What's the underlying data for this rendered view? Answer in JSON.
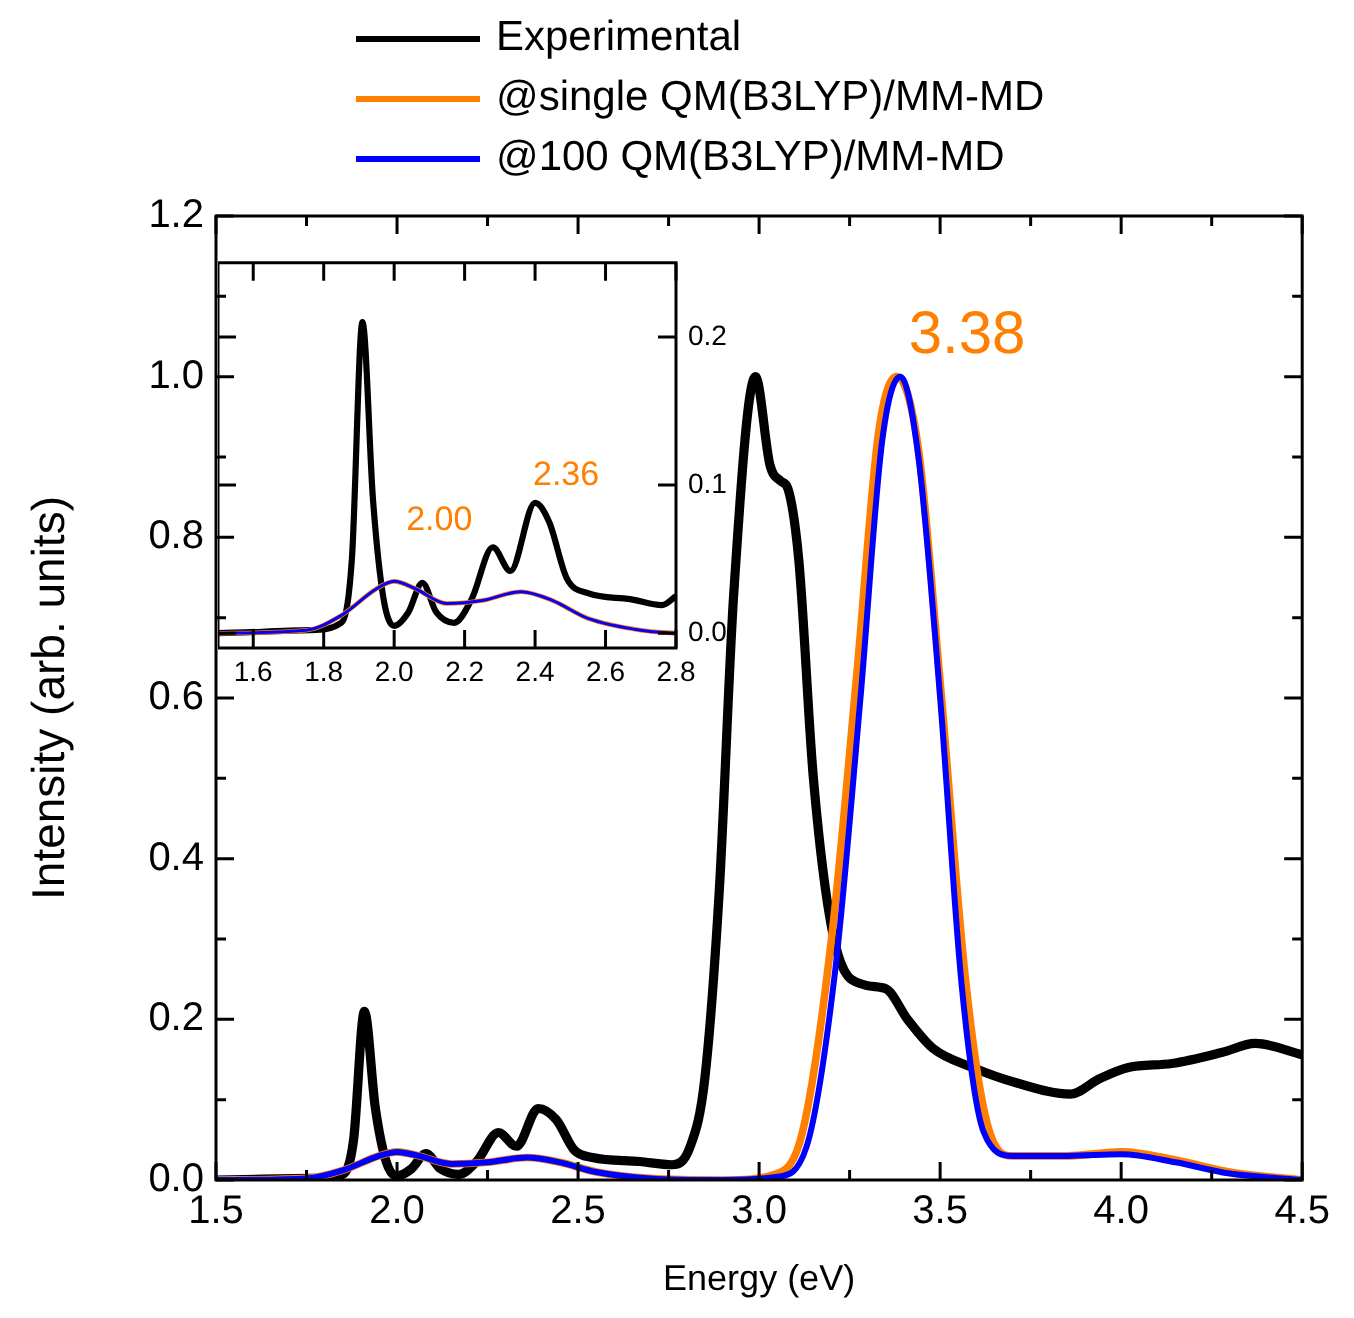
{
  "chart_data": [
    {
      "type": "line",
      "xlabel": "Energy (eV)",
      "ylabel": "Intensity (arb. units)",
      "xlim": [
        1.5,
        4.5
      ],
      "ylim": [
        0,
        1.2
      ],
      "legend": "top",
      "grid": false,
      "xticks": [
        {
          "value": 1.5,
          "label": "1.5"
        },
        {
          "value": 1.75,
          "label": null
        },
        {
          "value": 2,
          "label": "2.0"
        },
        {
          "value": 2.25,
          "label": null
        },
        {
          "value": 2.5,
          "label": "2.5"
        },
        {
          "value": 2.75,
          "label": null
        },
        {
          "value": 3,
          "label": "3.0"
        },
        {
          "value": 3.25,
          "label": null
        },
        {
          "value": 3.5,
          "label": "3.5"
        },
        {
          "value": 3.75,
          "label": null
        },
        {
          "value": 4,
          "label": "4.0"
        },
        {
          "value": 4.25,
          "label": null
        },
        {
          "value": 4.5,
          "label": "4.5"
        }
      ],
      "yticks": [
        {
          "value": 0,
          "label": "0.0"
        },
        {
          "value": 0.1,
          "label": null
        },
        {
          "value": 0.2,
          "label": "0.2"
        },
        {
          "value": 0.3,
          "label": null
        },
        {
          "value": 0.4,
          "label": "0.4"
        },
        {
          "value": 0.5,
          "label": null
        },
        {
          "value": 0.6,
          "label": "0.6"
        },
        {
          "value": 0.7,
          "label": null
        },
        {
          "value": 0.8,
          "label": "0.8"
        },
        {
          "value": 0.9,
          "label": null
        },
        {
          "value": 1,
          "label": "1.0"
        },
        {
          "value": 1.1,
          "label": null
        },
        {
          "value": 1.2,
          "label": "1.2"
        }
      ],
      "annotations": [
        {
          "text": "3.38",
          "x": 3.38,
          "y": 1.0
        }
      ],
      "series": [
        {
          "name": "Experimental",
          "color": "#000000",
          "x": [
            1.5,
            1.76,
            1.85,
            1.88,
            1.91,
            1.94,
            1.97,
            2.0,
            2.04,
            2.08,
            2.12,
            2.17,
            2.22,
            2.28,
            2.33,
            2.39,
            2.44,
            2.49,
            2.54,
            2.67,
            2.76,
            2.81,
            2.85,
            2.89,
            2.93,
            2.99,
            3.03,
            3.06,
            3.08,
            3.11,
            3.15,
            3.21,
            3.29,
            3.35,
            3.41,
            3.48,
            3.59,
            3.71,
            3.86,
            3.94,
            4.02,
            4.14,
            4.28,
            4.37,
            4.5
          ],
          "values": [
            0.0,
            0.002,
            0.007,
            0.05,
            0.21,
            0.09,
            0.023,
            0.005,
            0.014,
            0.033,
            0.014,
            0.007,
            0.023,
            0.059,
            0.042,
            0.089,
            0.075,
            0.037,
            0.028,
            0.023,
            0.019,
            0.042,
            0.126,
            0.36,
            0.73,
            1.0,
            0.89,
            0.87,
            0.86,
            0.77,
            0.5,
            0.294,
            0.243,
            0.238,
            0.2,
            0.164,
            0.14,
            0.121,
            0.107,
            0.126,
            0.14,
            0.145,
            0.159,
            0.17,
            0.156
          ]
        },
        {
          "name": "@single QM(B3LYP)/MM-MD",
          "color": "#ff7f00",
          "x": [
            1.5,
            1.75,
            1.85,
            1.95,
            2.0,
            2.06,
            2.15,
            2.25,
            2.36,
            2.45,
            2.55,
            2.7,
            2.9,
            3.05,
            3.12,
            3.2,
            3.27,
            3.33,
            3.38,
            3.44,
            3.5,
            3.57,
            3.63,
            3.7,
            3.85,
            4.0,
            4.15,
            4.3,
            4.5
          ],
          "values": [
            0.0,
            0.002,
            0.012,
            0.03,
            0.035,
            0.03,
            0.02,
            0.022,
            0.028,
            0.022,
            0.01,
            0.002,
            0.0,
            0.008,
            0.06,
            0.3,
            0.63,
            0.93,
            1.0,
            0.91,
            0.62,
            0.25,
            0.07,
            0.03,
            0.03,
            0.035,
            0.025,
            0.01,
            0.0
          ]
        },
        {
          "name": "@100 QM(B3LYP)/MM-MD",
          "color": "#0000ff",
          "x": [
            1.5,
            1.75,
            1.85,
            1.95,
            2.0,
            2.06,
            2.15,
            2.25,
            2.36,
            2.45,
            2.55,
            2.7,
            2.9,
            3.05,
            3.13,
            3.21,
            3.28,
            3.34,
            3.39,
            3.44,
            3.5,
            3.56,
            3.62,
            3.7,
            3.85,
            4.0,
            4.15,
            4.3,
            4.5
          ],
          "values": [
            0.0,
            0.002,
            0.012,
            0.03,
            0.035,
            0.03,
            0.02,
            0.022,
            0.028,
            0.022,
            0.01,
            0.002,
            0.0,
            0.004,
            0.04,
            0.26,
            0.6,
            0.92,
            1.0,
            0.9,
            0.6,
            0.24,
            0.06,
            0.03,
            0.03,
            0.032,
            0.022,
            0.008,
            0.0
          ]
        }
      ]
    },
    {
      "type": "line",
      "xlim": [
        1.5,
        2.8
      ],
      "ylim": [
        -0.01,
        0.25
      ],
      "legend": false,
      "grid": false,
      "xticks": [
        {
          "value": 1.6,
          "label": "1.6"
        },
        {
          "value": 1.8,
          "label": "1.8"
        },
        {
          "value": 2,
          "label": "2.0"
        },
        {
          "value": 2.2,
          "label": "2.2"
        },
        {
          "value": 2.4,
          "label": "2.4"
        },
        {
          "value": 2.6,
          "label": "2.6"
        },
        {
          "value": 2.8,
          "label": "2.8"
        }
      ],
      "yticks": [
        {
          "value": 0,
          "label": "0.0"
        },
        {
          "value": 0.1,
          "label": "0.1"
        },
        {
          "value": 0.2,
          "label": "0.2"
        }
      ],
      "annotations": [
        {
          "text": "2.00",
          "x": 2.0,
          "y": 0.035
        },
        {
          "text": "2.36",
          "x": 2.36,
          "y": 0.028
        }
      ],
      "series": [
        {
          "color": "#000000",
          "x": [
            1.5,
            1.76,
            1.85,
            1.88,
            1.91,
            1.94,
            1.97,
            2.0,
            2.04,
            2.08,
            2.12,
            2.17,
            2.22,
            2.28,
            2.33,
            2.4,
            2.44,
            2.49,
            2.55,
            2.67,
            2.76,
            2.8
          ],
          "values": [
            0.0,
            0.002,
            0.007,
            0.05,
            0.21,
            0.09,
            0.023,
            0.005,
            0.014,
            0.034,
            0.014,
            0.007,
            0.023,
            0.058,
            0.042,
            0.088,
            0.075,
            0.037,
            0.027,
            0.023,
            0.019,
            0.025
          ]
        },
        {
          "color": "#ff7f00",
          "x": [
            1.5,
            1.75,
            1.85,
            1.95,
            2.0,
            2.06,
            2.15,
            2.25,
            2.36,
            2.45,
            2.55,
            2.7,
            2.8
          ],
          "values": [
            0.0,
            0.002,
            0.012,
            0.03,
            0.035,
            0.03,
            0.02,
            0.022,
            0.028,
            0.022,
            0.01,
            0.002,
            0.0
          ]
        },
        {
          "color": "#0000ff",
          "x": [
            1.5,
            1.75,
            1.85,
            1.95,
            2.0,
            2.06,
            2.15,
            2.25,
            2.36,
            2.45,
            2.55,
            2.7,
            2.8
          ],
          "values": [
            0.0,
            0.002,
            0.012,
            0.03,
            0.035,
            0.03,
            0.02,
            0.022,
            0.028,
            0.022,
            0.01,
            0.002,
            0.0
          ]
        }
      ]
    }
  ]
}
